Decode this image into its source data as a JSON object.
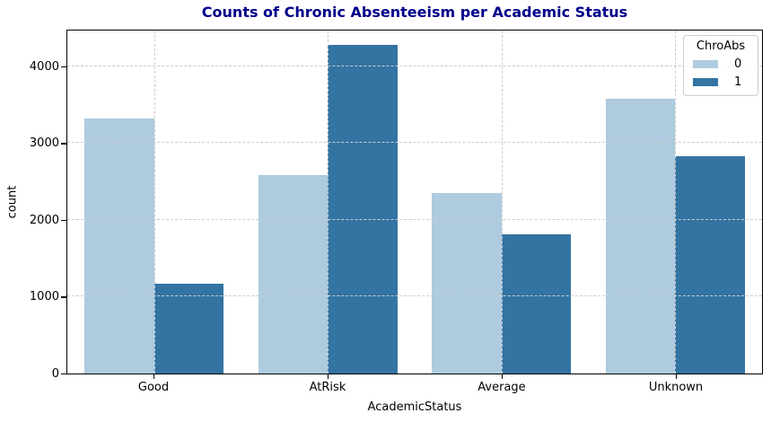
{
  "chart_data": {
    "type": "bar",
    "title": "Counts of Chronic Absenteeism per Academic Status",
    "title_color": "#00008b",
    "xlabel": "AcademicStatus",
    "ylabel": "count",
    "categories": [
      "Good",
      "AtRisk",
      "Average",
      "Unknown"
    ],
    "series": [
      {
        "name": "0",
        "color": "#aecbdf",
        "values": [
          3340,
          2600,
          2360,
          3600
        ]
      },
      {
        "name": "1",
        "color": "#3374a3",
        "values": [
          1170,
          4300,
          1820,
          2850
        ]
      }
    ],
    "legend": {
      "title": "ChroAbs",
      "position": "upper right"
    },
    "yticks": [
      0,
      1000,
      2000,
      3000,
      4000
    ],
    "ylim": [
      0,
      4490
    ],
    "grid": true,
    "grid_style": "dashed",
    "grid_color": "#cccccc",
    "bar_group_width_fraction": 0.8
  }
}
